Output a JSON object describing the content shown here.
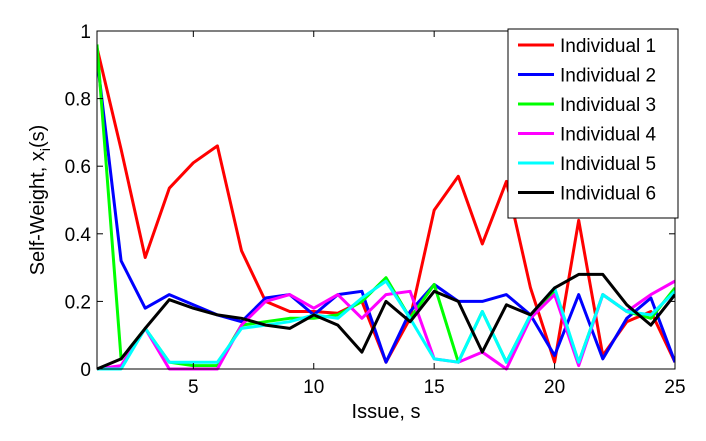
{
  "chart_data": {
    "type": "line",
    "title": "",
    "xlabel": "Issue, s",
    "ylabel_main": "Self-Weight, x",
    "ylabel_sub": "i",
    "ylabel_tail": "(s)",
    "xlim": [
      1,
      25
    ],
    "ylim": [
      0,
      1
    ],
    "xticks": [
      5,
      10,
      15,
      20,
      25
    ],
    "xtick_labels": [
      "5",
      "10",
      "15",
      "20",
      "25"
    ],
    "yticks": [
      0,
      0.2,
      0.4,
      0.6,
      0.8,
      1
    ],
    "ytick_labels": [
      "0",
      "0.2",
      "0.4",
      "0.6",
      "0.8",
      "1"
    ],
    "grid": false,
    "legend_position": "top-right",
    "x": [
      1,
      2,
      3,
      4,
      5,
      6,
      7,
      8,
      9,
      10,
      11,
      12,
      13,
      14,
      15,
      16,
      17,
      18,
      19,
      20,
      21,
      22,
      23,
      24,
      25
    ],
    "series": [
      {
        "name": "Individual 1",
        "color": "#ff0000",
        "values": [
          0.95,
          0.65,
          0.33,
          0.535,
          0.61,
          0.66,
          0.35,
          0.2,
          0.17,
          0.17,
          0.165,
          0.2,
          0.02,
          0.15,
          0.47,
          0.57,
          0.37,
          0.555,
          0.24,
          0.02,
          0.44,
          0.04,
          0.14,
          0.17,
          0.02
        ]
      },
      {
        "name": "Individual 2",
        "color": "#0000ff",
        "values": [
          0.92,
          0.32,
          0.18,
          0.22,
          0.19,
          0.16,
          0.14,
          0.21,
          0.22,
          0.16,
          0.22,
          0.23,
          0.02,
          0.17,
          0.25,
          0.2,
          0.2,
          0.22,
          0.16,
          0.04,
          0.22,
          0.03,
          0.15,
          0.21,
          0.02
        ]
      },
      {
        "name": "Individual 3",
        "color": "#00ff00",
        "values": [
          0.96,
          0.03,
          0.12,
          0.02,
          0.01,
          0.01,
          0.13,
          0.14,
          0.15,
          0.15,
          0.16,
          0.2,
          0.27,
          0.15,
          0.25,
          0.02,
          0.17,
          0.02,
          0.16,
          0.23,
          0.02,
          0.22,
          0.17,
          0.15,
          0.24
        ]
      },
      {
        "name": "Individual 4",
        "color": "#ff00ff",
        "values": [
          0.0,
          0.01,
          0.12,
          0.0,
          0.0,
          0.0,
          0.13,
          0.2,
          0.22,
          0.18,
          0.22,
          0.15,
          0.22,
          0.23,
          0.03,
          0.02,
          0.05,
          0.0,
          0.15,
          0.22,
          0.01,
          0.22,
          0.17,
          0.22,
          0.26
        ]
      },
      {
        "name": "Individual 5",
        "color": "#00ffff",
        "values": [
          0.0,
          0.0,
          0.12,
          0.02,
          0.02,
          0.02,
          0.12,
          0.13,
          0.14,
          0.16,
          0.15,
          0.21,
          0.26,
          0.15,
          0.03,
          0.02,
          0.17,
          0.02,
          0.16,
          0.24,
          0.02,
          0.22,
          0.17,
          0.16,
          0.23
        ]
      },
      {
        "name": "Individual 6",
        "color": "#000000",
        "values": [
          0.0,
          0.03,
          0.12,
          0.205,
          0.18,
          0.16,
          0.15,
          0.13,
          0.12,
          0.16,
          0.13,
          0.05,
          0.2,
          0.14,
          0.23,
          0.2,
          0.05,
          0.19,
          0.16,
          0.24,
          0.28,
          0.28,
          0.19,
          0.13,
          0.22
        ]
      }
    ]
  }
}
